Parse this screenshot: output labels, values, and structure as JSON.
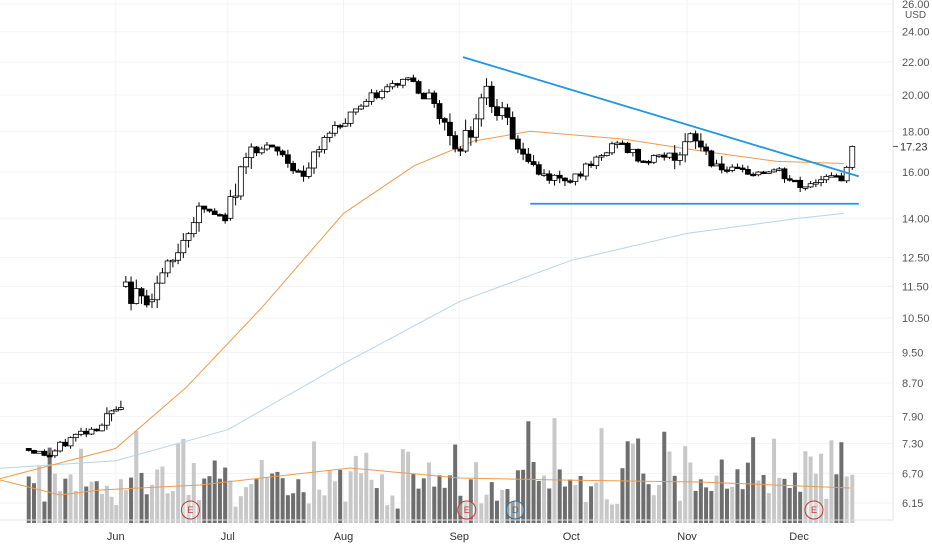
{
  "chart_data": {
    "type": "candlestick",
    "currency": "USD",
    "y_scale": "log",
    "ylim": [
      6.0,
      26.0
    ],
    "y_ticks": [
      "26.00",
      "24.00",
      "22.00",
      "20.00",
      "18.00",
      "16.00",
      "14.00",
      "12.50",
      "11.50",
      "10.50",
      "9.50",
      "8.70",
      "7.90",
      "7.30",
      "6.70",
      "6.15"
    ],
    "y_tick_values": [
      26,
      24,
      22,
      20,
      18,
      16,
      14,
      12.5,
      11.5,
      10.5,
      9.5,
      8.7,
      7.9,
      7.3,
      6.7,
      6.15
    ],
    "x_months": [
      "Jun",
      "Jul",
      "Aug",
      "Sep",
      "Oct",
      "Nov",
      "Dec"
    ],
    "last_price": "17.23",
    "last_price_value": 17.23,
    "events": [
      {
        "label": "E",
        "month": "Jun",
        "day": 21,
        "color": "#c0392b"
      },
      {
        "label": "E",
        "month": "Sep",
        "day": 3,
        "color": "#c0392b"
      },
      {
        "label": "D",
        "month": "Sep",
        "day": 16,
        "color": "#2e6fa3"
      },
      {
        "label": "E",
        "month": "Dec",
        "day": 5,
        "color": "#c0392b"
      }
    ],
    "colors": {
      "up_body": "#ffffff",
      "down_body": "#000000",
      "wick": "#000000",
      "ma50": "#f19a4a",
      "ma200": "#b8d4e6",
      "trendline": "#2196e3",
      "vol_up": "#c8c8c8",
      "vol_down": "#6e6e6e",
      "vol_ma": "#f19a4a"
    },
    "ohlc_sampled": [
      {
        "d": "2019-05-08",
        "o": 7.2,
        "h": 7.3,
        "l": 6.9,
        "c": 7.05
      },
      {
        "d": "2019-05-15",
        "o": 7.05,
        "h": 7.6,
        "l": 7.0,
        "c": 7.5
      },
      {
        "d": "2019-05-22",
        "o": 7.5,
        "h": 7.85,
        "l": 7.3,
        "c": 7.7
      },
      {
        "d": "2019-05-29",
        "o": 7.7,
        "h": 9.2,
        "l": 7.6,
        "c": 8.1
      },
      {
        "d": "2019-06-03",
        "o": 11.5,
        "h": 12.3,
        "l": 10.2,
        "c": 10.9
      },
      {
        "d": "2019-06-10",
        "o": 11.0,
        "h": 12.6,
        "l": 10.8,
        "c": 12.4
      },
      {
        "d": "2019-06-17",
        "o": 12.4,
        "h": 14.8,
        "l": 12.2,
        "c": 14.5
      },
      {
        "d": "2019-06-24",
        "o": 14.5,
        "h": 14.9,
        "l": 13.6,
        "c": 13.9
      },
      {
        "d": "2019-07-01",
        "o": 14.0,
        "h": 17.8,
        "l": 13.9,
        "c": 17.2
      },
      {
        "d": "2019-07-08",
        "o": 17.2,
        "h": 18.1,
        "l": 16.6,
        "c": 17.0
      },
      {
        "d": "2019-07-15",
        "o": 17.0,
        "h": 17.2,
        "l": 15.4,
        "c": 15.8
      },
      {
        "d": "2019-07-22",
        "o": 15.8,
        "h": 18.0,
        "l": 15.7,
        "c": 17.9
      },
      {
        "d": "2019-07-29",
        "o": 17.9,
        "h": 19.5,
        "l": 17.6,
        "c": 19.2
      },
      {
        "d": "2019-08-05",
        "o": 19.2,
        "h": 20.6,
        "l": 18.8,
        "c": 20.2
      },
      {
        "d": "2019-08-12",
        "o": 20.2,
        "h": 21.4,
        "l": 19.9,
        "c": 21.0
      },
      {
        "d": "2019-08-19",
        "o": 21.0,
        "h": 21.2,
        "l": 19.2,
        "c": 19.5
      },
      {
        "d": "2019-08-26",
        "o": 19.5,
        "h": 19.7,
        "l": 16.0,
        "c": 17.0
      },
      {
        "d": "2019-09-02",
        "o": 17.0,
        "h": 22.3,
        "l": 16.9,
        "c": 20.5
      },
      {
        "d": "2019-09-09",
        "o": 20.5,
        "h": 20.8,
        "l": 17.4,
        "c": 17.6
      },
      {
        "d": "2019-09-16",
        "o": 17.6,
        "h": 17.8,
        "l": 15.6,
        "c": 15.9
      },
      {
        "d": "2019-09-23",
        "o": 15.9,
        "h": 16.2,
        "l": 14.6,
        "c": 15.6
      },
      {
        "d": "2019-09-30",
        "o": 15.6,
        "h": 16.6,
        "l": 15.3,
        "c": 16.3
      },
      {
        "d": "2019-10-07",
        "o": 16.3,
        "h": 17.8,
        "l": 16.1,
        "c": 17.4
      },
      {
        "d": "2019-10-14",
        "o": 17.4,
        "h": 17.6,
        "l": 16.1,
        "c": 16.5
      },
      {
        "d": "2019-10-21",
        "o": 16.5,
        "h": 17.4,
        "l": 16.2,
        "c": 16.9
      },
      {
        "d": "2019-10-28",
        "o": 16.9,
        "h": 18.4,
        "l": 15.3,
        "c": 17.5
      },
      {
        "d": "2019-11-04",
        "o": 17.5,
        "h": 18.1,
        "l": 15.4,
        "c": 16.1
      },
      {
        "d": "2019-11-11",
        "o": 16.1,
        "h": 16.7,
        "l": 15.5,
        "c": 15.9
      },
      {
        "d": "2019-11-18",
        "o": 15.9,
        "h": 16.4,
        "l": 15.5,
        "c": 16.1
      },
      {
        "d": "2019-11-25",
        "o": 16.1,
        "h": 16.3,
        "l": 14.7,
        "c": 15.3
      },
      {
        "d": "2019-12-02",
        "o": 15.3,
        "h": 16.2,
        "l": 15.0,
        "c": 15.8
      },
      {
        "d": "2019-12-09",
        "o": 15.8,
        "h": 16.5,
        "l": 15.4,
        "c": 15.6
      },
      {
        "d": "2019-12-13",
        "o": 15.6,
        "h": 17.3,
        "l": 15.5,
        "c": 17.23
      }
    ],
    "trendline_upper": [
      {
        "d": "2019-09-02",
        "v": 22.3
      },
      {
        "d": "2019-12-17",
        "v": 15.8
      }
    ],
    "trendline_lower": [
      {
        "d": "2019-09-20",
        "v": 14.6
      },
      {
        "d": "2019-12-17",
        "v": 14.6
      }
    ],
    "ma50_sampled": [
      {
        "d": "2019-05-01",
        "v": 6.6
      },
      {
        "d": "2019-06-01",
        "v": 7.2
      },
      {
        "d": "2019-06-20",
        "v": 8.6
      },
      {
        "d": "2019-07-10",
        "v": 10.8
      },
      {
        "d": "2019-08-01",
        "v": 14.2
      },
      {
        "d": "2019-08-20",
        "v": 16.3
      },
      {
        "d": "2019-09-05",
        "v": 17.5
      },
      {
        "d": "2019-09-20",
        "v": 18.0
      },
      {
        "d": "2019-10-15",
        "v": 17.6
      },
      {
        "d": "2019-11-05",
        "v": 17.0
      },
      {
        "d": "2019-11-25",
        "v": 16.5
      },
      {
        "d": "2019-12-13",
        "v": 16.4
      }
    ],
    "ma200_sampled": [
      {
        "d": "2019-05-01",
        "v": 6.8
      },
      {
        "d": "2019-06-01",
        "v": 6.95
      },
      {
        "d": "2019-07-01",
        "v": 7.6
      },
      {
        "d": "2019-08-01",
        "v": 9.2
      },
      {
        "d": "2019-09-01",
        "v": 11.0
      },
      {
        "d": "2019-10-01",
        "v": 12.4
      },
      {
        "d": "2019-11-01",
        "v": 13.4
      },
      {
        "d": "2019-12-01",
        "v": 14.0
      },
      {
        "d": "2019-12-13",
        "v": 14.2
      }
    ]
  }
}
